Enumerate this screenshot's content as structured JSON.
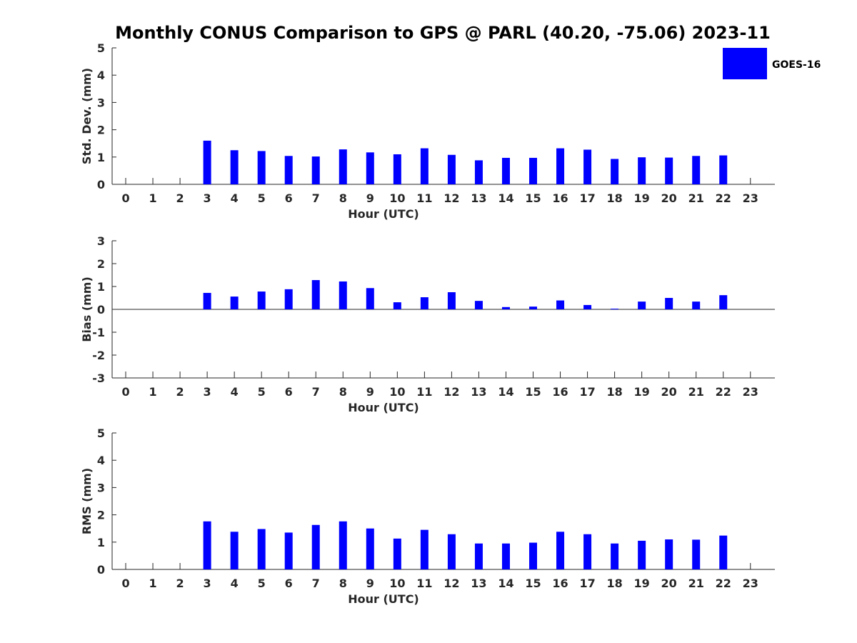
{
  "figure": {
    "title": "Monthly CONUS Comparison to GPS @ PARL (40.20, -75.06) 2023-11",
    "background": "#ffffff"
  },
  "legend": {
    "label": "GOES-16",
    "color": "#0000ff",
    "placement": "top-right"
  },
  "chart_data": [
    {
      "type": "bar",
      "ylabel": "Std. Dev. (mm)",
      "xlabel": "Hour (UTC)",
      "categories": [
        "0",
        "1",
        "2",
        "3",
        "4",
        "5",
        "6",
        "7",
        "8",
        "9",
        "10",
        "11",
        "12",
        "13",
        "14",
        "15",
        "16",
        "17",
        "18",
        "19",
        "20",
        "21",
        "22",
        "23"
      ],
      "yticks": [
        "0",
        "1",
        "2",
        "3",
        "4",
        "5"
      ],
      "ylim": [
        0,
        5
      ],
      "xlim": [
        -0.5,
        23.9
      ],
      "series": [
        {
          "name": "GOES-16",
          "color": "#0000ff",
          "values": [
            null,
            null,
            null,
            1.6,
            1.25,
            1.22,
            1.04,
            1.02,
            1.28,
            1.17,
            1.1,
            1.32,
            1.08,
            0.88,
            0.97,
            0.97,
            1.32,
            1.27,
            0.93,
            0.99,
            0.98,
            1.04,
            1.06,
            null
          ]
        }
      ]
    },
    {
      "type": "bar",
      "ylabel": "Bias (mm)",
      "xlabel": "Hour (UTC)",
      "categories": [
        "0",
        "1",
        "2",
        "3",
        "4",
        "5",
        "6",
        "7",
        "8",
        "9",
        "10",
        "11",
        "12",
        "13",
        "14",
        "15",
        "16",
        "17",
        "18",
        "19",
        "20",
        "21",
        "22",
        "23"
      ],
      "yticks": [
        "3",
        "2",
        "1",
        "0",
        "-1",
        "-2",
        "-3"
      ],
      "ylim": [
        -3,
        3
      ],
      "xlim": [
        -0.5,
        23.9
      ],
      "series": [
        {
          "name": "GOES-16",
          "color": "#0000ff",
          "values": [
            null,
            null,
            null,
            0.72,
            0.56,
            0.78,
            0.88,
            1.28,
            1.22,
            0.93,
            0.31,
            0.53,
            0.75,
            0.37,
            0.1,
            0.12,
            0.39,
            0.19,
            0.03,
            0.34,
            0.5,
            0.34,
            0.62,
            null
          ]
        }
      ]
    },
    {
      "type": "bar",
      "ylabel": "RMS (mm)",
      "xlabel": "Hour (UTC)",
      "categories": [
        "0",
        "1",
        "2",
        "3",
        "4",
        "5",
        "6",
        "7",
        "8",
        "9",
        "10",
        "11",
        "12",
        "13",
        "14",
        "15",
        "16",
        "17",
        "18",
        "19",
        "20",
        "21",
        "22",
        "23"
      ],
      "yticks": [
        "0",
        "1",
        "2",
        "3",
        "4",
        "5"
      ],
      "ylim": [
        0,
        5
      ],
      "xlim": [
        -0.5,
        23.9
      ],
      "series": [
        {
          "name": "GOES-16",
          "color": "#0000ff",
          "values": [
            null,
            null,
            null,
            1.76,
            1.38,
            1.48,
            1.35,
            1.63,
            1.76,
            1.5,
            1.13,
            1.45,
            1.29,
            0.95,
            0.95,
            0.98,
            1.38,
            1.29,
            0.95,
            1.05,
            1.1,
            1.09,
            1.24,
            null
          ]
        }
      ]
    }
  ]
}
